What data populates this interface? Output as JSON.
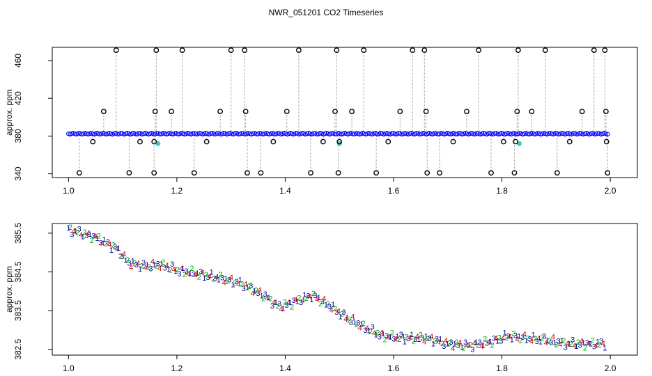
{
  "title": "NWR_051201  CO2 Timeseries",
  "colors": {
    "frame": "#000000",
    "outlier": "#000000",
    "connector": "#999999",
    "points": "#0000ff",
    "cyan": "#33cccc",
    "red": "#cc0000",
    "green": "#00aa00",
    "navy": "#000099"
  },
  "chart_data": [
    {
      "type": "scatter",
      "title": "",
      "xlabel": "",
      "ylabel": "approx. ppm",
      "xlim": [
        0.97,
        2.05
      ],
      "ylim": [
        336,
        474
      ],
      "xticks": [
        "1.0",
        "1.2",
        "1.4",
        "1.6",
        "1.8",
        "2.0"
      ],
      "xtick_values": [
        1.0,
        1.2,
        1.4,
        1.6,
        1.8,
        2.0
      ],
      "yticks": [
        "340",
        "380",
        "420",
        "460"
      ],
      "ytick_values": [
        340,
        380,
        420,
        460
      ],
      "baseline_ppm": 382.5,
      "baseline_x": [
        1.0,
        1.995
      ],
      "outliers": [
        [
          1.02,
          341
        ],
        [
          1.045,
          374
        ],
        [
          1.065,
          406
        ],
        [
          1.088,
          471
        ],
        [
          1.112,
          341
        ],
        [
          1.132,
          374
        ],
        [
          1.158,
          341
        ],
        [
          1.16,
          406
        ],
        [
          1.162,
          471
        ],
        [
          1.158,
          374
        ],
        [
          1.19,
          406
        ],
        [
          1.21,
          471
        ],
        [
          1.232,
          341
        ],
        [
          1.255,
          374
        ],
        [
          1.28,
          406
        ],
        [
          1.3,
          471
        ],
        [
          1.325,
          471
        ],
        [
          1.327,
          406
        ],
        [
          1.33,
          341
        ],
        [
          1.355,
          341
        ],
        [
          1.378,
          374
        ],
        [
          1.403,
          406
        ],
        [
          1.425,
          471
        ],
        [
          1.447,
          341
        ],
        [
          1.47,
          374
        ],
        [
          1.492,
          406
        ],
        [
          1.495,
          471
        ],
        [
          1.498,
          341
        ],
        [
          1.5,
          374
        ],
        [
          1.523,
          406
        ],
        [
          1.545,
          471
        ],
        [
          1.568,
          341
        ],
        [
          1.59,
          374
        ],
        [
          1.612,
          406
        ],
        [
          1.635,
          471
        ],
        [
          1.657,
          471
        ],
        [
          1.66,
          406
        ],
        [
          1.662,
          341
        ],
        [
          1.685,
          341
        ],
        [
          1.71,
          374
        ],
        [
          1.735,
          406
        ],
        [
          1.757,
          471
        ],
        [
          1.78,
          341
        ],
        [
          1.803,
          374
        ],
        [
          1.823,
          341
        ],
        [
          1.825,
          374
        ],
        [
          1.828,
          406
        ],
        [
          1.83,
          471
        ],
        [
          1.855,
          406
        ],
        [
          1.88,
          471
        ],
        [
          1.902,
          341
        ],
        [
          1.925,
          374
        ],
        [
          1.948,
          406
        ],
        [
          1.97,
          471
        ],
        [
          1.99,
          471
        ],
        [
          1.992,
          406
        ],
        [
          1.993,
          374
        ],
        [
          1.995,
          341
        ]
      ],
      "cyan_points": [
        [
          1.165,
          372
        ],
        [
          1.5,
          372
        ],
        [
          1.832,
          372
        ]
      ]
    },
    {
      "type": "scatter",
      "title": "",
      "xlabel": "",
      "ylabel": "approx. ppm",
      "xlim": [
        0.97,
        2.05
      ],
      "ylim": [
        382.35,
        385.75
      ],
      "xticks": [
        "1.0",
        "1.2",
        "1.4",
        "1.6",
        "1.8",
        "2.0"
      ],
      "xtick_values": [
        1.0,
        1.2,
        1.4,
        1.6,
        1.8,
        2.0
      ],
      "yticks": [
        "382.5",
        "383.5",
        "384.5",
        "385.5"
      ],
      "ytick_values": [
        382.5,
        383.5,
        384.5,
        385.5
      ],
      "markers": [
        "1",
        "2",
        "3",
        "4"
      ],
      "trend": [
        [
          1.0,
          385.6
        ],
        [
          1.05,
          385.4
        ],
        [
          1.09,
          385.1
        ],
        [
          1.11,
          384.75
        ],
        [
          1.14,
          384.65
        ],
        [
          1.17,
          384.7
        ],
        [
          1.2,
          384.55
        ],
        [
          1.24,
          384.45
        ],
        [
          1.28,
          384.35
        ],
        [
          1.32,
          384.2
        ],
        [
          1.36,
          383.9
        ],
        [
          1.39,
          383.6
        ],
        [
          1.42,
          383.75
        ],
        [
          1.45,
          383.9
        ],
        [
          1.48,
          383.65
        ],
        [
          1.51,
          383.35
        ],
        [
          1.55,
          383.05
        ],
        [
          1.58,
          382.85
        ],
        [
          1.62,
          382.8
        ],
        [
          1.66,
          382.8
        ],
        [
          1.7,
          382.65
        ],
        [
          1.74,
          382.6
        ],
        [
          1.78,
          382.7
        ],
        [
          1.81,
          382.85
        ],
        [
          1.84,
          382.8
        ],
        [
          1.88,
          382.75
        ],
        [
          1.92,
          382.65
        ],
        [
          1.96,
          382.65
        ],
        [
          1.99,
          382.65
        ]
      ]
    }
  ]
}
